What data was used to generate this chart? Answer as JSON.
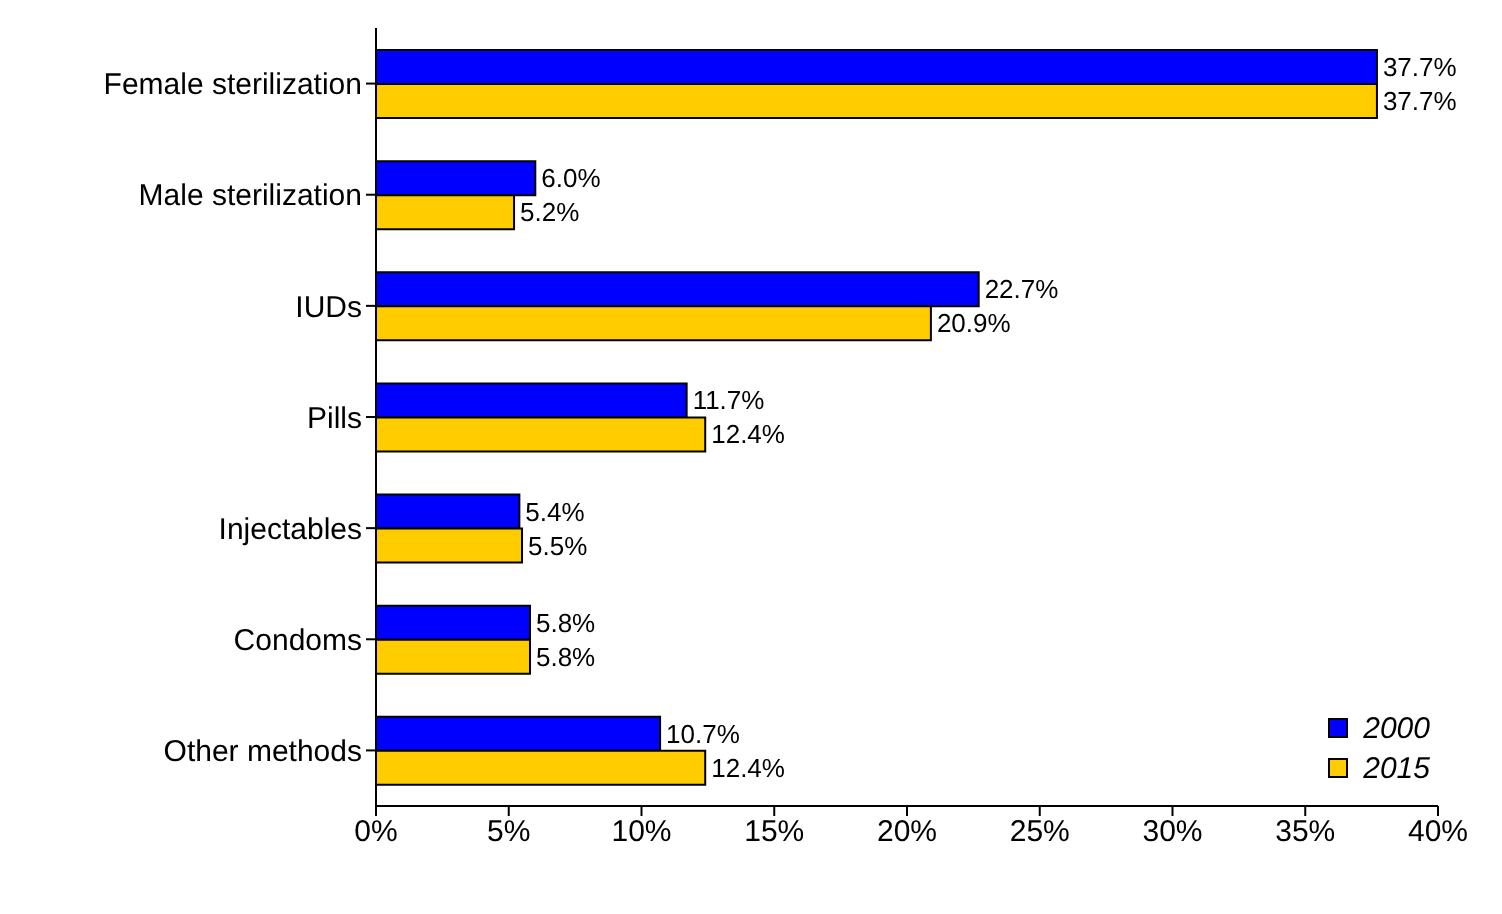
{
  "chart_data": {
    "type": "bar",
    "orientation": "horizontal",
    "categories": [
      "Female sterilization",
      "Male sterilization",
      "IUDs",
      "Pills",
      "Injectables",
      "Condoms",
      "Other methods"
    ],
    "series": [
      {
        "name": "2000",
        "color": "#0000ff",
        "values": [
          37.7,
          6.0,
          22.7,
          11.7,
          5.4,
          5.8,
          10.7
        ],
        "value_labels": [
          "37.7%",
          "6.0%",
          "22.7%",
          "11.7%",
          "5.4%",
          "5.8%",
          "10.7%"
        ]
      },
      {
        "name": "2015",
        "color": "#ffcc00",
        "values": [
          37.7,
          5.2,
          20.9,
          12.4,
          5.5,
          5.8,
          12.4
        ],
        "value_labels": [
          "37.7%",
          "5.2%",
          "20.9%",
          "12.4%",
          "5.5%",
          "5.8%",
          "12.4%"
        ]
      }
    ],
    "xlim": [
      0,
      40
    ],
    "xticks": [
      {
        "value": 0,
        "label": "0%"
      },
      {
        "value": 5,
        "label": "5%"
      },
      {
        "value": 10,
        "label": "10%"
      },
      {
        "value": 15,
        "label": "15%"
      },
      {
        "value": 20,
        "label": "20%"
      },
      {
        "value": 25,
        "label": "25%"
      },
      {
        "value": 30,
        "label": "30%"
      },
      {
        "value": 35,
        "label": "35%"
      },
      {
        "value": 40,
        "label": "40%"
      }
    ],
    "grid": false,
    "legend": "bottom right"
  }
}
